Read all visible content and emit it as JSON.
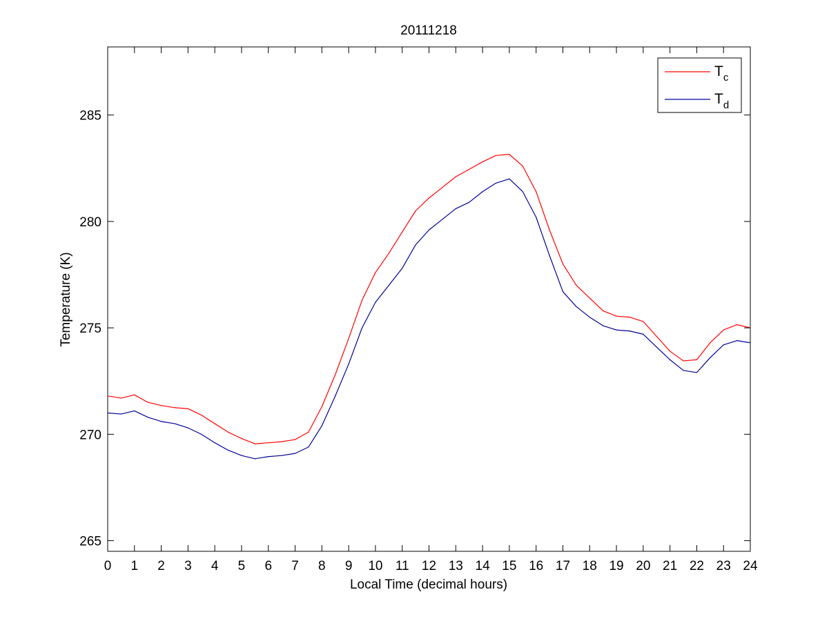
{
  "chart_data": {
    "type": "line",
    "title": "20111218",
    "xlabel": "Local Time (decimal hours)",
    "ylabel": "Temperature (K)",
    "xlim": [
      0,
      24
    ],
    "ylim": [
      264.5,
      288.2
    ],
    "xticks": [
      0,
      1,
      2,
      3,
      4,
      5,
      6,
      7,
      8,
      9,
      10,
      11,
      12,
      13,
      14,
      15,
      16,
      17,
      18,
      19,
      20,
      21,
      22,
      23,
      24
    ],
    "yticks": [
      265,
      270,
      275,
      280,
      285
    ],
    "grid": false,
    "legend_position": "top-right",
    "series": [
      {
        "name": "T",
        "name_sub": "c",
        "color": "#ff0000",
        "x": [
          0,
          0.5,
          1,
          1.5,
          2,
          2.5,
          3,
          3.5,
          4,
          4.5,
          5,
          5.5,
          6,
          6.5,
          7,
          7.5,
          8,
          8.5,
          9,
          9.5,
          10,
          10.5,
          11,
          11.5,
          12,
          12.5,
          13,
          13.5,
          14,
          14.5,
          15,
          15.5,
          16,
          16.5,
          17,
          17.5,
          18,
          18.5,
          19,
          19.5,
          20,
          20.5,
          21,
          21.5,
          22,
          22.5,
          23,
          23.5,
          24
        ],
        "values": [
          271.8,
          271.7,
          271.85,
          271.5,
          271.35,
          271.25,
          271.2,
          270.9,
          270.5,
          270.1,
          269.8,
          269.55,
          269.6,
          269.65,
          269.75,
          270.1,
          271.3,
          272.8,
          274.5,
          276.3,
          277.6,
          278.5,
          279.5,
          280.5,
          281.1,
          281.6,
          282.1,
          282.45,
          282.8,
          283.1,
          283.15,
          282.6,
          281.4,
          279.6,
          278.0,
          277.0,
          276.4,
          275.8,
          275.55,
          275.5,
          275.3,
          274.6,
          273.9,
          273.45,
          273.5,
          274.3,
          274.9,
          275.15,
          275.0
        ]
      },
      {
        "name": "T",
        "name_sub": "d",
        "color": "#000099",
        "x": [
          0,
          0.5,
          1,
          1.5,
          2,
          2.5,
          3,
          3.5,
          4,
          4.5,
          5,
          5.5,
          6,
          6.5,
          7,
          7.5,
          8,
          8.5,
          9,
          9.5,
          10,
          10.5,
          11,
          11.5,
          12,
          12.5,
          13,
          13.5,
          14,
          14.5,
          15,
          15.5,
          16,
          16.5,
          17,
          17.5,
          18,
          18.5,
          19,
          19.5,
          20,
          20.5,
          21,
          21.5,
          22,
          22.5,
          23,
          23.5,
          24
        ],
        "values": [
          271.0,
          270.95,
          271.1,
          270.8,
          270.6,
          270.5,
          270.3,
          270.0,
          269.6,
          269.25,
          269.0,
          268.85,
          268.95,
          269.0,
          269.1,
          269.4,
          270.4,
          271.8,
          273.3,
          275.0,
          276.2,
          277.0,
          277.8,
          278.9,
          279.6,
          280.1,
          280.6,
          280.9,
          281.4,
          281.8,
          282.0,
          281.4,
          280.2,
          278.4,
          276.7,
          276.0,
          275.5,
          275.1,
          274.9,
          274.85,
          274.7,
          274.1,
          273.5,
          273.0,
          272.9,
          273.6,
          274.2,
          274.4,
          274.3
        ]
      }
    ]
  }
}
